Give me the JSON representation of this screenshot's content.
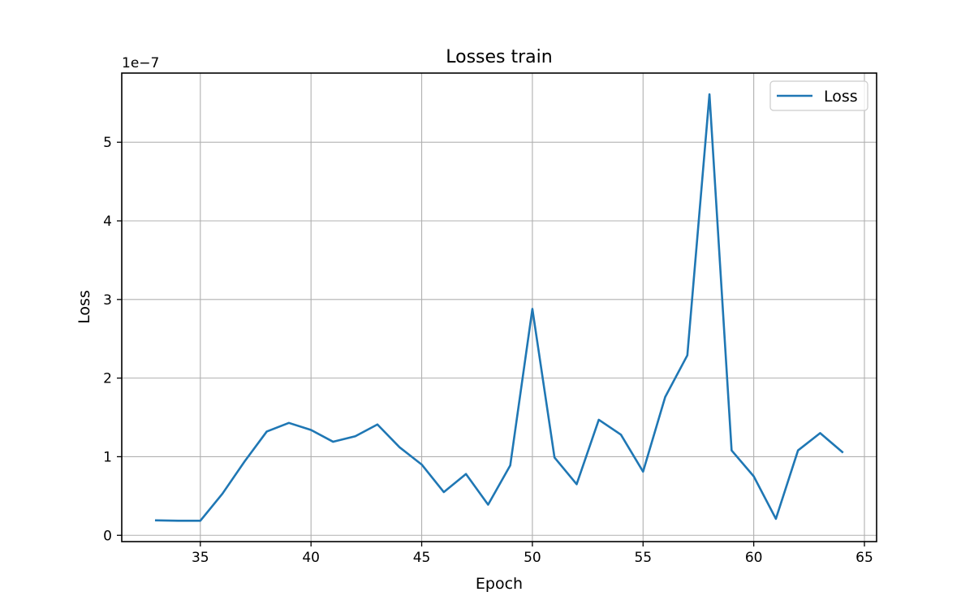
{
  "chart_data": {
    "type": "line",
    "title": "Losses train",
    "xlabel": "Epoch",
    "ylabel": "Loss",
    "y_offset_label": "1e−7",
    "y_scale_factor": 1e-07,
    "xlim": [
      31.45,
      65.55
    ],
    "ylim": [
      -0.08,
      5.88
    ],
    "x_ticks": [
      35,
      40,
      45,
      50,
      55,
      60,
      65
    ],
    "x_tick_labels": [
      "35",
      "40",
      "45",
      "50",
      "55",
      "60",
      "65"
    ],
    "y_ticks": [
      0,
      1,
      2,
      3,
      4,
      5
    ],
    "y_tick_labels": [
      "0",
      "1",
      "2",
      "3",
      "4",
      "5"
    ],
    "grid": true,
    "legend_position": "top-right",
    "series_color": "#1f77b4",
    "series": [
      {
        "name": "Loss",
        "x": [
          33,
          34,
          35,
          36,
          37,
          38,
          39,
          40,
          41,
          42,
          43,
          44,
          45,
          46,
          47,
          48,
          49,
          50,
          51,
          52,
          53,
          54,
          55,
          56,
          57,
          58,
          59,
          60,
          61,
          62,
          63,
          64
        ],
        "values": [
          0.19,
          0.185,
          0.185,
          0.53,
          0.94,
          1.32,
          1.43,
          1.34,
          1.19,
          1.26,
          1.41,
          1.12,
          0.9,
          0.55,
          0.78,
          0.39,
          0.89,
          2.88,
          0.99,
          0.65,
          1.47,
          1.28,
          0.81,
          1.76,
          2.29,
          5.61,
          1.08,
          0.75,
          0.21,
          1.08,
          1.3,
          1.06
        ]
      }
    ]
  }
}
